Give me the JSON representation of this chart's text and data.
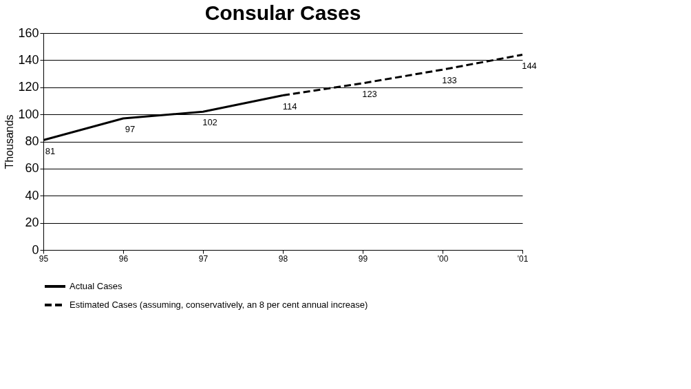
{
  "chart_data": {
    "type": "line",
    "title": "Consular Cases",
    "ylabel": "Thousands",
    "categories": [
      "95",
      "96",
      "97",
      "98",
      "99",
      "'00",
      "'01"
    ],
    "series": [
      {
        "name": "Actual Cases",
        "color": "#000000",
        "line_style": "solid",
        "values": [
          81,
          97,
          102,
          114,
          null,
          null,
          null
        ],
        "value_labels": [
          "81",
          "97",
          "102",
          "114",
          null,
          null,
          null
        ]
      },
      {
        "name": "Estimated Cases (assuming, conservatively, an 8 per cent annual increase)",
        "color": "#000000",
        "line_style": "dashed",
        "values": [
          null,
          null,
          null,
          114,
          123,
          133,
          144
        ],
        "value_labels": [
          null,
          null,
          null,
          null,
          "123",
          "133",
          "144"
        ]
      }
    ],
    "ylim": [
      0,
      160
    ],
    "yticks": [
      0,
      20,
      40,
      60,
      80,
      100,
      120,
      140,
      160
    ],
    "grid": "y",
    "legend": "bottom",
    "marker": "none"
  }
}
